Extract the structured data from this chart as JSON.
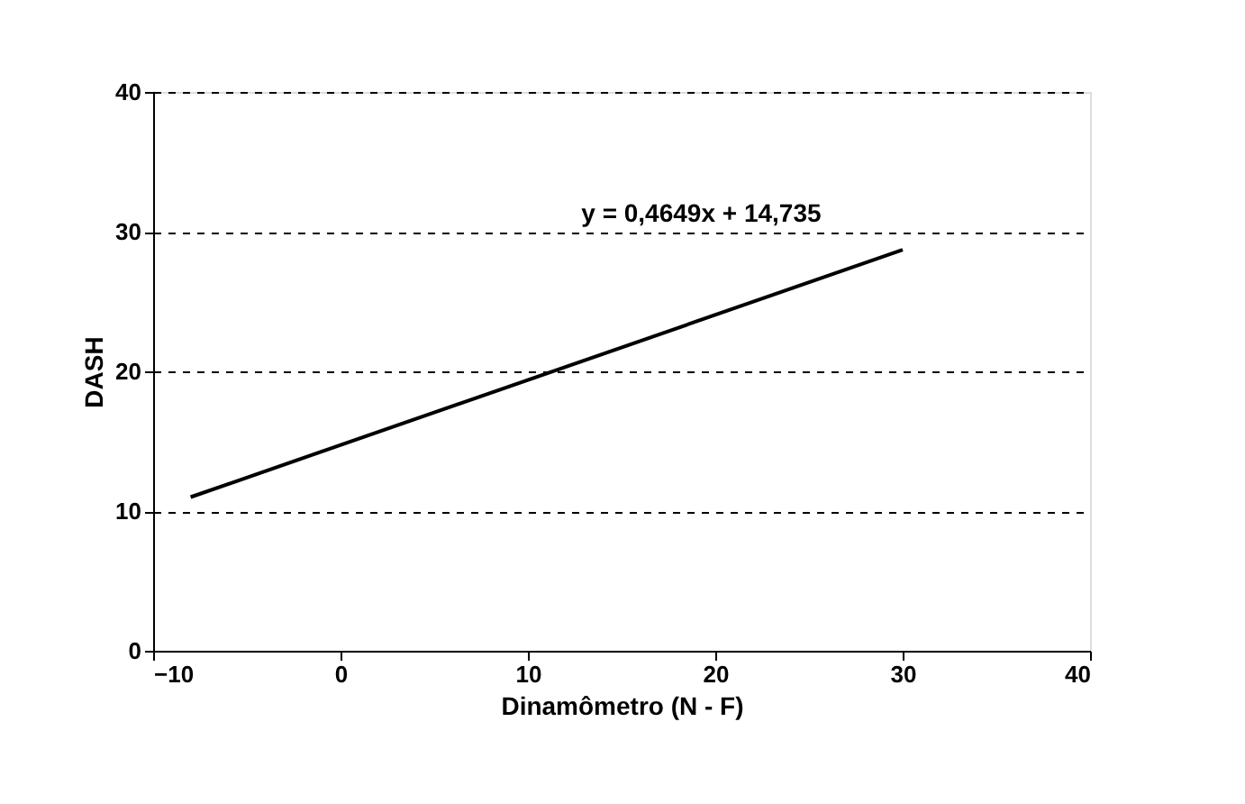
{
  "chart_data": {
    "type": "line",
    "xlabel": "Dinamômetro (N - F)",
    "ylabel": "DASH",
    "series": [
      {
        "color": "#000000",
        "x": [
          -8,
          30
        ],
        "values": [
          11.0,
          28.7
        ]
      }
    ],
    "xlim": [
      -10,
      40
    ],
    "xticks": [
      -10,
      0,
      10,
      20,
      30,
      40
    ],
    "ylim": [
      0,
      40
    ],
    "yticks": [
      0,
      10,
      20,
      30,
      40
    ],
    "grid": "y",
    "marker": "none",
    "line_style": "solid",
    "annotations": [
      "y = 0,4649x + 14,735"
    ]
  }
}
